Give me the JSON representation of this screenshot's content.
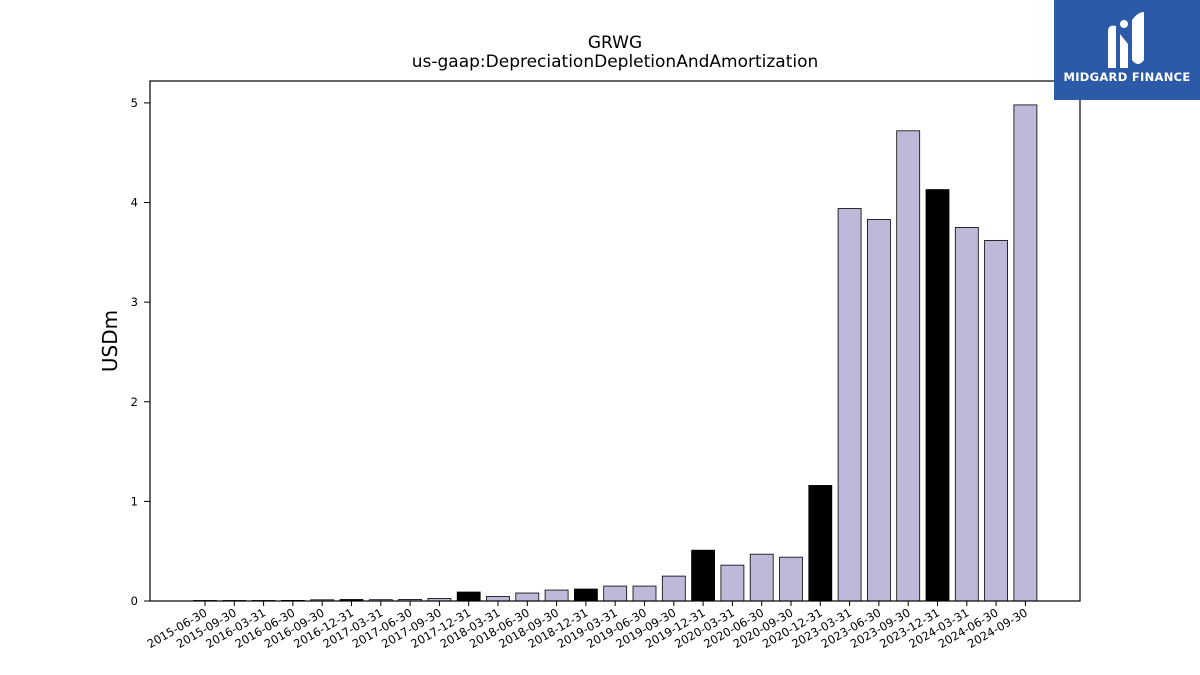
{
  "chart_data": {
    "type": "bar",
    "title": "GRWG",
    "subtitle": "us-gaap:DepreciationDepletionAndAmortization",
    "xlabel": "",
    "ylabel": "USDm",
    "ylim": [
      0,
      5.22
    ],
    "yticks": [
      0,
      1,
      2,
      3,
      4,
      5
    ],
    "grid": false,
    "colors": {
      "quarter": "#bcb9d9",
      "annual": "#000000",
      "edge": "#000000"
    },
    "categories": [
      "2015-06-30",
      "2015-09-30",
      "2016-03-31",
      "2016-06-30",
      "2016-09-30",
      "2016-12-31",
      "2017-03-31",
      "2017-06-30",
      "2017-09-30",
      "2017-12-31",
      "2018-03-31",
      "2018-06-30",
      "2018-09-30",
      "2018-12-31",
      "2019-03-31",
      "2019-06-30",
      "2019-09-30",
      "2019-12-31",
      "2020-03-31",
      "2020-06-30",
      "2020-09-30",
      "2020-12-31",
      "2023-03-31",
      "2023-06-30",
      "2023-09-30",
      "2023-12-31",
      "2024-03-31",
      "2024-06-30",
      "2024-09-30"
    ],
    "values": [
      0.003,
      0.004,
      0.005,
      0.006,
      0.012,
      0.015,
      0.013,
      0.016,
      0.025,
      0.09,
      0.045,
      0.08,
      0.11,
      0.12,
      0.15,
      0.15,
      0.25,
      0.51,
      0.36,
      0.47,
      0.44,
      1.16,
      3.94,
      3.83,
      4.72,
      4.13,
      3.75,
      3.62,
      4.98
    ],
    "annual": [
      false,
      false,
      false,
      false,
      false,
      true,
      false,
      false,
      false,
      true,
      false,
      false,
      false,
      true,
      false,
      false,
      false,
      true,
      false,
      false,
      false,
      true,
      false,
      false,
      false,
      true,
      false,
      false,
      false
    ]
  },
  "logo": {
    "text": "MIDGARD FINANCE",
    "icon": "midgard-logo-icon"
  }
}
